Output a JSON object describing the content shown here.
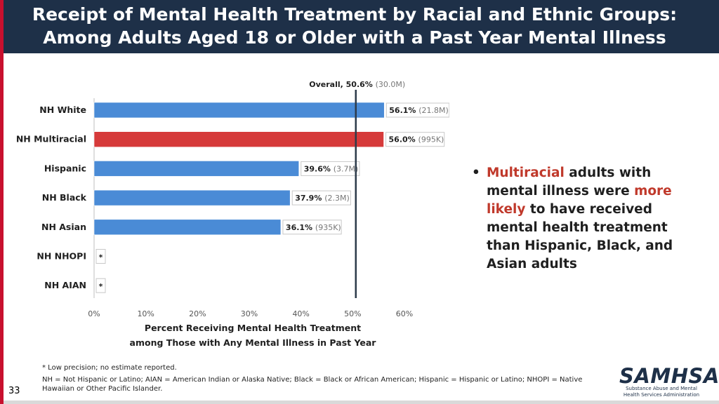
{
  "title": {
    "line1": "Receipt of Mental Health Treatment by Racial and Ethnic Groups:",
    "line2": "Among Adults Aged 18 or Older with a Past Year Mental Illness"
  },
  "chart_data": {
    "type": "bar",
    "orientation": "horizontal",
    "categories": [
      "NH White",
      "NH Multiracial",
      "Hispanic",
      "NH Black",
      "NH Asian",
      "NH NHOPI",
      "NH AIAN"
    ],
    "values": [
      56.1,
      56.0,
      39.6,
      37.9,
      36.1,
      null,
      null
    ],
    "value_labels": [
      "56.1%",
      "56.0%",
      "39.6%",
      "37.9%",
      "36.1%",
      "*",
      "*"
    ],
    "count_labels": [
      "(21.8M)",
      "(995K)",
      "(3.7M)",
      "(2.3M)",
      "(935K)",
      "",
      ""
    ],
    "highlight_category": "NH Multiracial",
    "bar_color": "#4a8bd6",
    "highlight_color": "#d63a3a",
    "reference_line": {
      "value": 50.6,
      "label_main": "Overall, 50.6%",
      "label_count": "(30.0M)"
    },
    "xlim": [
      0,
      60
    ],
    "x_ticks": [
      0,
      10,
      20,
      30,
      40,
      50,
      60
    ],
    "x_tick_labels": [
      "0%",
      "10%",
      "20%",
      "30%",
      "40%",
      "50%",
      "60%"
    ],
    "xlabel_line1": "Percent Receiving Mental Health Treatment",
    "xlabel_line2": "among Those with Any Mental Illness in Past Year",
    "grid": false
  },
  "bullet": {
    "part1": "Multiracial",
    "part2": " adults with mental illness were ",
    "part3": "more likely",
    "part4": " to have received mental health treatment than Hispanic, Black, and Asian adults"
  },
  "footnotes": {
    "note1": "* Low precision; no estimate reported.",
    "note2": "NH = Not Hispanic or Latino; AIAN = American Indian or Alaska Native; Black = Black or African American; Hispanic = Hispanic or Latino; NHOPI = Native Hawaiian or Other Pacific Islander."
  },
  "logo": {
    "name": "SAMHSA",
    "subtitle": "Substance Abuse and Mental Health Services Administration"
  },
  "page_number": "33"
}
